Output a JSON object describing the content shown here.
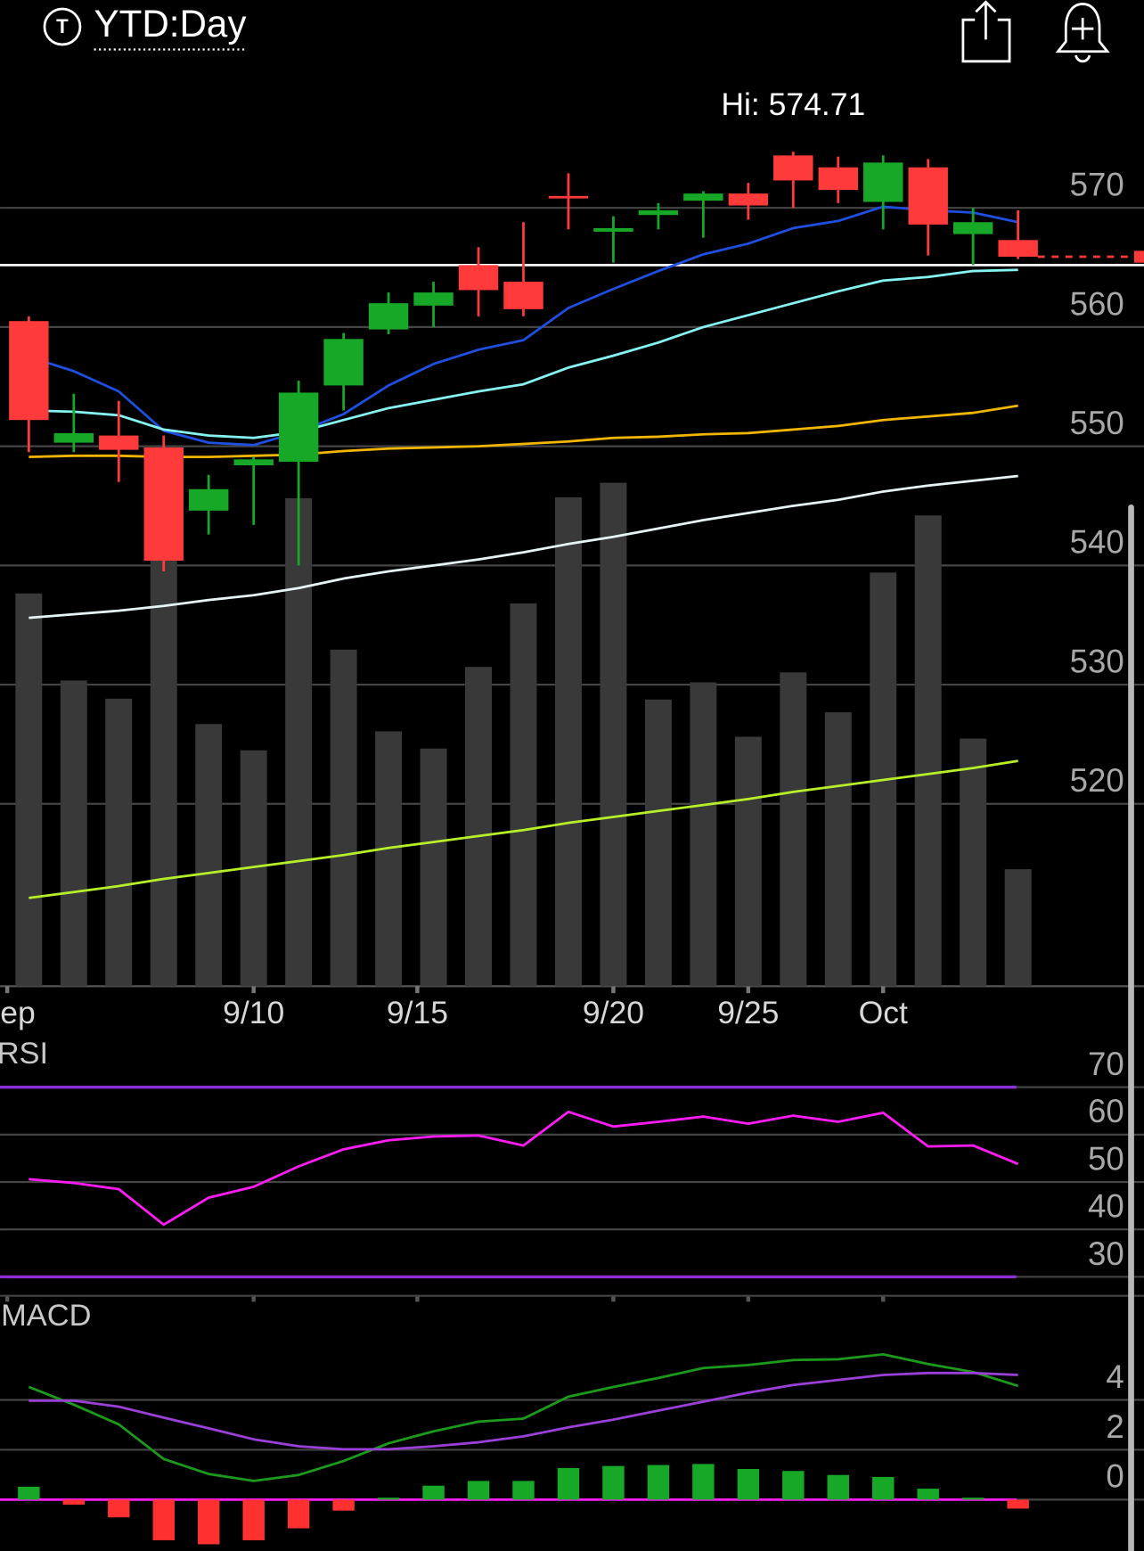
{
  "header": {
    "icon": "T",
    "title": "YTD:Day"
  },
  "chart_data": [
    {
      "type": "candlestick",
      "x": [
        0,
        1,
        2,
        3,
        4,
        5,
        6,
        7,
        8,
        9,
        10,
        11,
        12,
        13,
        14,
        15,
        16,
        17,
        18,
        19,
        20,
        21,
        22
      ],
      "open": [
        560.5,
        550.3,
        550.9,
        549.9,
        544.6,
        548.4,
        548.7,
        555.1,
        559.8,
        561.8,
        565.2,
        563.8,
        571.0,
        568.0,
        569.4,
        570.6,
        571.2,
        574.4,
        573.4,
        570.5,
        573.4,
        567.8,
        567.3
      ],
      "high": [
        560.9,
        554.4,
        553.8,
        550.9,
        547.6,
        549.1,
        555.5,
        559.5,
        562.9,
        563.8,
        566.7,
        568.8,
        572.9,
        569.3,
        570.4,
        571.4,
        572.1,
        574.71,
        574.3,
        574.4,
        574.1,
        570.0,
        569.8
      ],
      "low": [
        549.5,
        549.5,
        547.0,
        539.5,
        542.6,
        543.4,
        540.0,
        553.0,
        559.4,
        560.0,
        560.9,
        560.9,
        568.2,
        565.4,
        568.2,
        567.5,
        569.0,
        570.0,
        570.4,
        568.2,
        566.0,
        565.2,
        565.7
      ],
      "close": [
        552.2,
        551.1,
        549.7,
        540.4,
        546.4,
        548.9,
        554.5,
        559.0,
        562.0,
        562.9,
        563.1,
        561.5,
        570.8,
        568.3,
        569.8,
        571.2,
        570.2,
        572.3,
        571.5,
        573.8,
        568.6,
        568.8,
        565.9
      ],
      "up_color": "#17a828",
      "down_color": "#ff3a3a",
      "series": [
        {
          "color": "#1f4fe0",
          "values": [
            557.5,
            556.3,
            554.6,
            551.3,
            550.3,
            550.1,
            551.2,
            552.7,
            555.1,
            556.9,
            558.1,
            558.9,
            561.6,
            563.2,
            564.7,
            566.1,
            567.0,
            568.3,
            568.9,
            570.1,
            569.8,
            569.6,
            568.8
          ]
        },
        {
          "color": "#86f3f3",
          "values": [
            553.0,
            552.9,
            552.6,
            551.4,
            550.9,
            550.7,
            551.2,
            552.2,
            553.2,
            553.9,
            554.6,
            555.2,
            556.6,
            557.6,
            558.7,
            560.0,
            561.0,
            562.0,
            563.0,
            563.9,
            564.2,
            564.7,
            564.8
          ]
        },
        {
          "color": "#f2b600",
          "values": [
            549.1,
            549.2,
            549.2,
            549.1,
            549.1,
            549.2,
            549.3,
            549.6,
            549.8,
            549.9,
            550.0,
            550.2,
            550.4,
            550.7,
            550.8,
            551.0,
            551.1,
            551.4,
            551.7,
            552.2,
            552.5,
            552.8,
            553.4
          ]
        },
        {
          "color": "#e6f4f6",
          "values": [
            535.6,
            535.9,
            536.2,
            536.6,
            537.1,
            537.5,
            538.1,
            538.9,
            539.5,
            540.0,
            540.5,
            541.1,
            541.8,
            542.4,
            543.1,
            543.8,
            544.4,
            545.0,
            545.5,
            546.2,
            546.7,
            547.1,
            547.5
          ]
        },
        {
          "color": "#b6ef2a",
          "values": [
            512.1,
            512.6,
            513.1,
            513.7,
            514.2,
            514.7,
            515.2,
            515.7,
            516.3,
            516.8,
            517.3,
            517.8,
            518.4,
            518.9,
            519.4,
            519.9,
            520.4,
            521.0,
            521.5,
            522.0,
            522.5,
            523.0,
            523.6
          ]
        }
      ],
      "volume": {
        "color": "#393939",
        "axis": "y2",
        "values": [
          43.3,
          33.7,
          31.7,
          47.1,
          28.9,
          26.0,
          53.8,
          37.1,
          28.1,
          26.2,
          35.2,
          42.2,
          53.9,
          55.5,
          31.6,
          33.5,
          27.5,
          34.6,
          30.2,
          45.6,
          51.9,
          27.3,
          12.9
        ]
      },
      "y2lim": [
        0,
        100
      ],
      "xlim": [
        -0.64,
        24.8
      ],
      "xticks": [
        {
          "value": -0.48,
          "label": "Sep"
        },
        {
          "value": 5,
          "label": "9/10"
        },
        {
          "value": 8.64,
          "label": "9/15"
        },
        {
          "value": 13,
          "label": "9/20"
        },
        {
          "value": 16,
          "label": "9/25"
        },
        {
          "value": 19,
          "label": "Oct"
        }
      ],
      "ylim": [
        504.7,
        580.8
      ],
      "yticks": [
        520,
        530,
        540,
        550,
        560,
        570
      ],
      "grid": true,
      "hline": 565.2,
      "annotation": {
        "text": "Hi: 574.71",
        "x": 17,
        "value": 574.71
      }
    },
    {
      "type": "line",
      "title": "RSI",
      "x": [
        0,
        1,
        2,
        3,
        4,
        5,
        6,
        7,
        8,
        9,
        10,
        11,
        12,
        13,
        14,
        15,
        16,
        17,
        18,
        19,
        20,
        21,
        22
      ],
      "series": [
        {
          "color": "#ff1cf4",
          "values": [
            50.6,
            49.8,
            48.5,
            41.0,
            46.7,
            49.0,
            53.3,
            56.9,
            58.8,
            59.6,
            59.8,
            57.7,
            64.8,
            61.7,
            62.7,
            63.8,
            62.3,
            64.0,
            62.7,
            64.6,
            57.5,
            57.7,
            53.8
          ]
        }
      ],
      "xlim": [
        -0.64,
        24.8
      ],
      "ylim": [
        26,
        79.2
      ],
      "yticks": [
        30,
        40,
        50,
        60,
        70
      ],
      "grid": true,
      "threshold_lines": [
        30,
        70
      ],
      "threshold_color": "#8a2fd6"
    },
    {
      "type": "macd",
      "title": "MACD",
      "x": [
        0,
        1,
        2,
        3,
        4,
        5,
        6,
        7,
        8,
        9,
        10,
        11,
        12,
        13,
        14,
        15,
        16,
        17,
        18,
        19,
        20,
        21,
        22
      ],
      "series": [
        {
          "color": "#1b9a1b",
          "values": [
            4.52,
            3.81,
            3.02,
            1.63,
            1.03,
            0.75,
            0.99,
            1.55,
            2.26,
            2.74,
            3.13,
            3.25,
            4.13,
            4.52,
            4.88,
            5.28,
            5.4,
            5.6,
            5.63,
            5.83,
            5.44,
            5.12,
            4.56
          ]
        },
        {
          "color": "#9a3fd8",
          "values": [
            3.97,
            3.97,
            3.73,
            3.29,
            2.86,
            2.42,
            2.14,
            2.02,
            2.02,
            2.14,
            2.3,
            2.54,
            2.9,
            3.21,
            3.57,
            3.93,
            4.29,
            4.6,
            4.8,
            5.0,
            5.08,
            5.08,
            5.0
          ]
        }
      ],
      "histogram": {
        "up_color": "#17a828",
        "down_color": "#ff3030",
        "values": [
          0.52,
          -0.2,
          -0.71,
          -1.63,
          -1.79,
          -1.63,
          -1.15,
          -0.44,
          0.08,
          0.56,
          0.75,
          0.75,
          1.27,
          1.35,
          1.39,
          1.43,
          1.23,
          1.15,
          0.99,
          0.91,
          0.44,
          0.08,
          -0.36
        ]
      },
      "xlim": [
        -0.64,
        24.8
      ],
      "ylim": [
        -2.06,
        7.78
      ],
      "yticks": [
        0,
        2,
        4
      ],
      "grid": true,
      "zero_line_color": "#ff1cf4"
    }
  ]
}
